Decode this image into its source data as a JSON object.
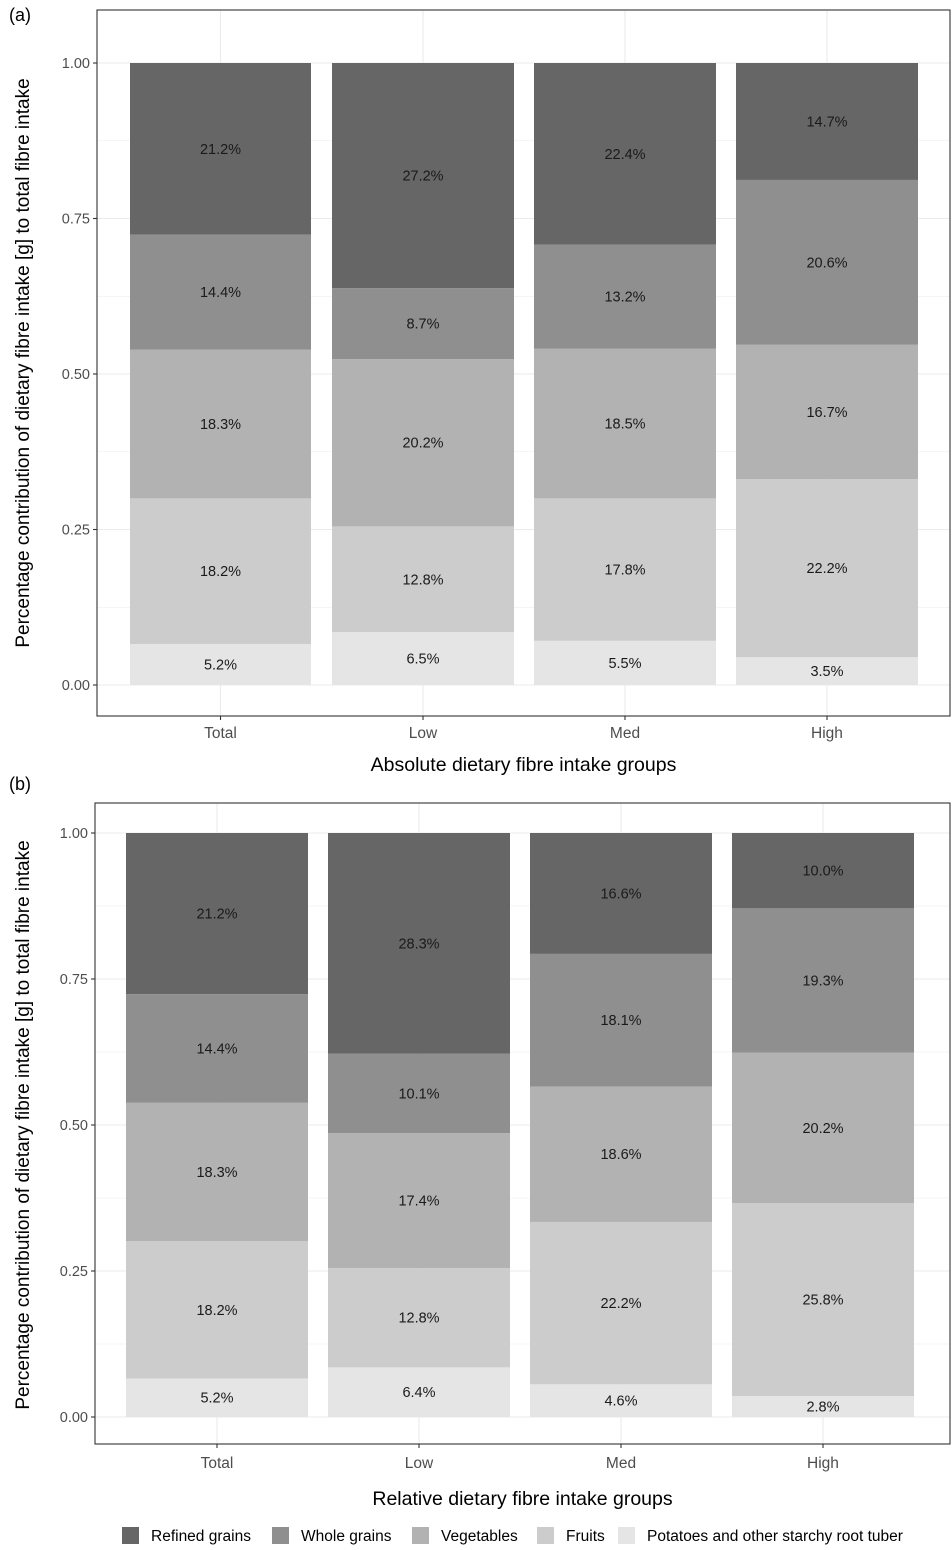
{
  "chart_data": [
    {
      "panel_label": "(a)",
      "type": "bar",
      "stacked": true,
      "xlabel": "Absolute dietary fibre intake groups",
      "ylabel": "Percentage contribution of dietary fibre intake [g] to total fibre intake",
      "ylim": [
        0,
        1
      ],
      "yticks": [
        "0.00",
        "0.25",
        "0.50",
        "0.75",
        "1.00"
      ],
      "categories": [
        "Total",
        "Low",
        "Med",
        "High"
      ],
      "grid": true,
      "series": [
        {
          "name": "Potatoes and other starchy root tuber",
          "values": [
            0.066,
            0.085,
            0.071,
            0.045
          ],
          "labels": [
            "5.2%",
            "6.5%",
            "5.5%",
            "3.5%"
          ]
        },
        {
          "name": "Fruits",
          "values": [
            0.234,
            0.17,
            0.229,
            0.286
          ],
          "labels": [
            "18.2%",
            "12.8%",
            "17.8%",
            "22.2%"
          ]
        },
        {
          "name": "Vegetables",
          "values": [
            0.239,
            0.269,
            0.241,
            0.216
          ],
          "labels": [
            "18.3%",
            "20.2%",
            "18.5%",
            "16.7%"
          ]
        },
        {
          "name": "Whole grains",
          "values": [
            0.185,
            0.114,
            0.167,
            0.265
          ],
          "labels": [
            "14.4%",
            "8.7%",
            "13.2%",
            "20.6%"
          ]
        },
        {
          "name": "Refined grains",
          "values": [
            0.276,
            0.362,
            0.292,
            0.188
          ],
          "labels": [
            "21.2%",
            "27.2%",
            "22.4%",
            "14.7%"
          ]
        }
      ]
    },
    {
      "panel_label": "(b)",
      "type": "bar",
      "stacked": true,
      "xlabel": "Relative dietary fibre intake groups",
      "ylabel": "Percentage contribution of dietary fibre intake [g] to total fibre intake",
      "ylim": [
        0,
        1
      ],
      "yticks": [
        "0.00",
        "0.25",
        "0.50",
        "0.75",
        "1.00"
      ],
      "categories": [
        "Total",
        "Low",
        "Med",
        "High"
      ],
      "grid": true,
      "series": [
        {
          "name": "Potatoes and other starchy root tuber",
          "values": [
            0.066,
            0.085,
            0.056,
            0.036
          ],
          "labels": [
            "5.2%",
            "6.4%",
            "4.6%",
            "2.8%"
          ]
        },
        {
          "name": "Fruits",
          "values": [
            0.235,
            0.17,
            0.278,
            0.33
          ],
          "labels": [
            "18.2%",
            "12.8%",
            "22.2%",
            "25.8%"
          ]
        },
        {
          "name": "Vegetables",
          "values": [
            0.237,
            0.231,
            0.232,
            0.258
          ],
          "labels": [
            "18.3%",
            "17.4%",
            "18.6%",
            "20.2%"
          ]
        },
        {
          "name": "Whole grains",
          "values": [
            0.186,
            0.136,
            0.227,
            0.247
          ],
          "labels": [
            "14.4%",
            "10.1%",
            "18.1%",
            "19.3%"
          ]
        },
        {
          "name": "Refined grains",
          "values": [
            0.276,
            0.378,
            0.207,
            0.129
          ],
          "labels": [
            "21.2%",
            "28.3%",
            "16.6%",
            "10.0%"
          ]
        }
      ]
    }
  ],
  "legend": {
    "placement": "bottom",
    "items": [
      {
        "name": "Refined grains",
        "color": "#666666"
      },
      {
        "name": "Whole grains",
        "color": "#8f8f8f"
      },
      {
        "name": "Vegetables",
        "color": "#b2b2b2"
      },
      {
        "name": "Fruits",
        "color": "#cccccc"
      },
      {
        "name": "Potatoes and other starchy root tuber",
        "color": "#e5e5e5"
      }
    ]
  },
  "colors": {
    "Refined grains": "#666666",
    "Whole grains": "#8f8f8f",
    "Vegetables": "#b2b2b2",
    "Fruits": "#cccccc",
    "Potatoes and other starchy root tuber": "#e5e5e5",
    "grid": "#ebebeb",
    "panel_border": "#333333"
  }
}
